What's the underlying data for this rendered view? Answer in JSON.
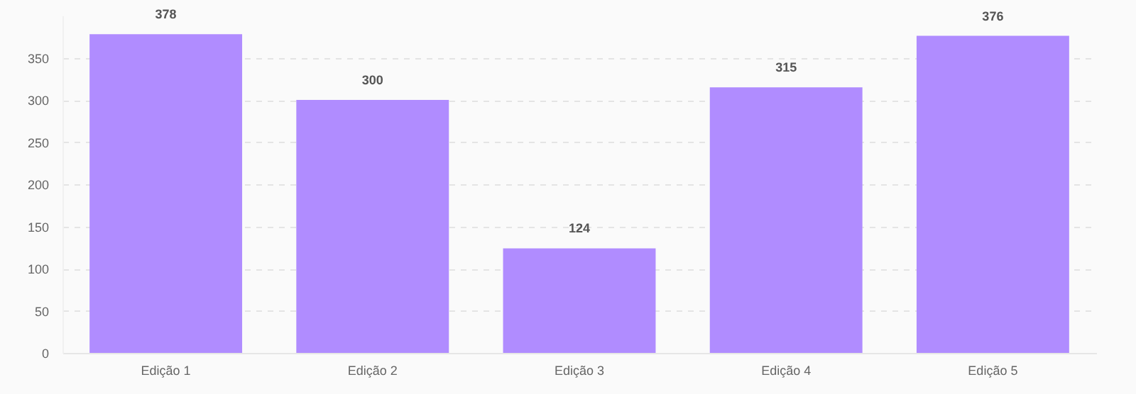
{
  "chart_data": {
    "type": "bar",
    "categories": [
      "Edição 1",
      "Edição 2",
      "Edição 3",
      "Edição 4",
      "Edição 5"
    ],
    "values": [
      378,
      300,
      124,
      315,
      376
    ],
    "color": "#b08cff",
    "ylim": [
      0,
      400
    ],
    "yticks": [
      0,
      50,
      100,
      150,
      200,
      250,
      300,
      350
    ],
    "grid": "y",
    "data_labels": true
  }
}
